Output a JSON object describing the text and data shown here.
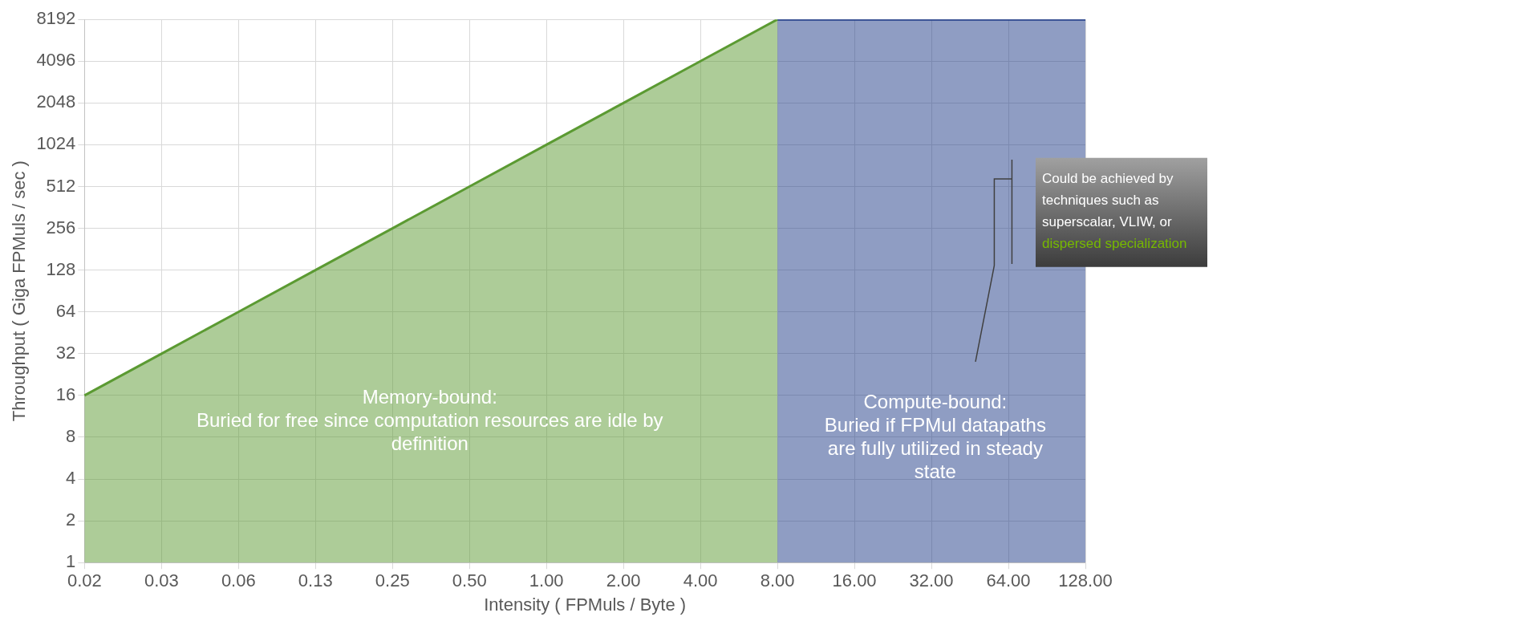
{
  "chart_data": {
    "type": "area",
    "xlabel": "Intensity ( FPMuls / Byte )",
    "ylabel": "Throughput ( Giga FPMuls / sec )",
    "categories": [
      "0.02",
      "0.03",
      "0.06",
      "0.13",
      "0.25",
      "0.50",
      "1.00",
      "2.00",
      "4.00",
      "8.00",
      "16.00",
      "32.00",
      "64.00",
      "128.00"
    ],
    "series": [
      {
        "color": "#5b9a32",
        "values": [
          16,
          32,
          64,
          128,
          256,
          512,
          1024,
          2048,
          4096,
          8192,
          null,
          null,
          null,
          null
        ]
      },
      {
        "color": "#1f3c88",
        "values": [
          null,
          null,
          null,
          null,
          null,
          null,
          null,
          null,
          null,
          8192,
          8192,
          8192,
          8192,
          8192
        ]
      }
    ],
    "log": "y",
    "ylim": [
      1,
      8192
    ],
    "yticks": [
      1,
      2,
      4,
      8,
      16,
      32,
      64,
      128,
      256,
      512,
      1024,
      2048,
      4096,
      8192
    ],
    "grid": true,
    "legend": false,
    "annotations": [
      "Memory-bound:\nBuried for free since computation resources are idle by\ndefinition",
      "Compute-bound:\nBuried if FPMul datapaths\nare fully utilized in steady\nstate",
      "Could be achieved by\ntechniques such as\nsuperscalar, VLIW, or\ndispersed specialization"
    ]
  }
}
